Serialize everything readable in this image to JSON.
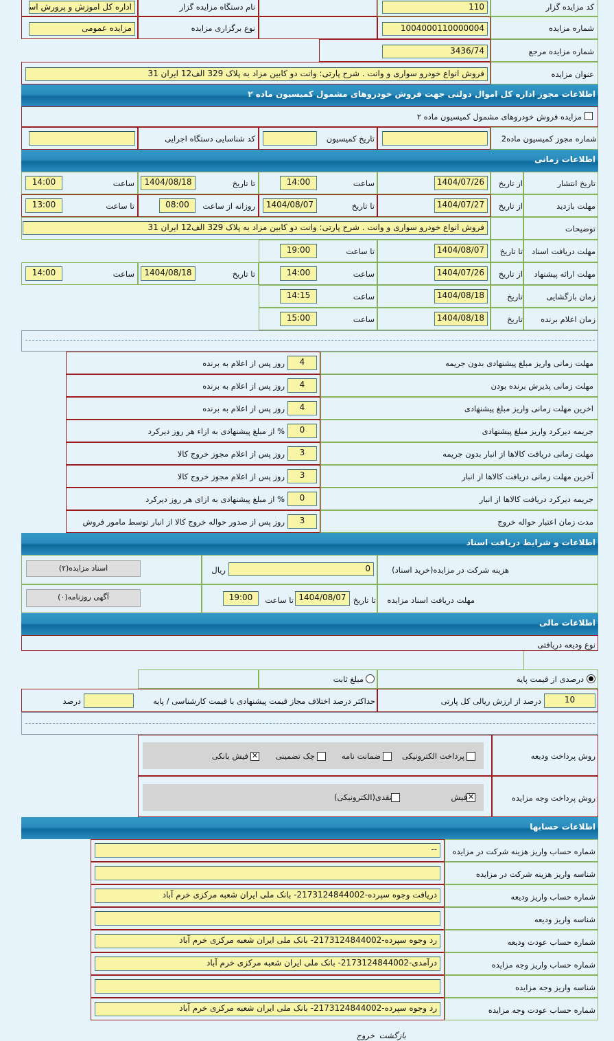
{
  "general": {
    "organizer_code_label": "کد مزایده گزار",
    "organizer_code": "110",
    "organizer_name_label": "نام دستگاه مزایده گزار",
    "organizer_name": "اداره کل اموزش و پرورش استا",
    "auction_number_label": "شماره مزایده",
    "auction_number": "1004000110000004",
    "auction_type_label": "نوع برگزاری مزایده",
    "auction_type": "مزایده عمومی",
    "ref_number_label": "شماره مزایده مرجع",
    "ref_number": "3436/74",
    "title_label": "عنوان مزایده",
    "title": "فروش انواع خودرو سواری و وانت . شرح پارتی: وانت دو کابین مزاد به پلاک 329 الف12 ایران 31"
  },
  "commission": {
    "header": "اطلاعات مجوز اداره کل اموال دولتی جهت فروش خودروهای مشمول کمیسیون ماده ۲",
    "checkbox_label": "مزایده فروش خودروهای مشمول کمیسیون ماده ۲",
    "checkbox_checked": false,
    "permit_label": "شماره مجوز کمیسیون ماده2",
    "permit_value": "",
    "date_label": "تاریخ کمیسیون",
    "date_value": "",
    "agency_code_label": "کد شناسایی دستگاه اجرایی",
    "agency_code_value": ""
  },
  "timing": {
    "header": "اطلاعات زمانی",
    "publish": {
      "label": "تاریخ انتشار",
      "from_label": "از تاریخ",
      "from": "1404/07/26",
      "time_label": "ساعت",
      "time": "14:00",
      "to_label": "تا تاریخ",
      "to": "1404/08/18",
      "to_time_label": "ساعت",
      "to_time": "14:00"
    },
    "visit": {
      "label": "مهلت بازدید",
      "from_label": "از تاریخ",
      "from": "1404/07/27",
      "to_label": "تا تاریخ",
      "to": "1404/08/07",
      "daily_from_label": "روزانه از ساعت",
      "daily_from": "08:00",
      "daily_to_label": "تا ساعت",
      "daily_to": "13:00"
    },
    "description": {
      "label": "توضیحات",
      "value": "فروش انواع خودرو سواری و وانت . شرح پارتی: وانت دو کابین مزاد به پلاک 329 الف12 ایران 31"
    },
    "docs": {
      "label": "مهلت دریافت اسناد",
      "to_label": "تا تاریخ",
      "to": "1404/08/07",
      "time_label": "تا ساعت",
      "time": "19:00"
    },
    "offer": {
      "label": "مهلت ارائه پیشنهاد",
      "from_label": "از تاریخ",
      "from": "1404/07/26",
      "time_label": "ساعت",
      "time": "14:00",
      "to_label": "تا تاریخ",
      "to": "1404/08/18",
      "to_time_label": "ساعت",
      "to_time": "14:00"
    },
    "opening": {
      "label": "زمان بازگشایی",
      "date_label": "تاریخ",
      "date": "1404/08/18",
      "time_label": "ساعت",
      "time": "14:15"
    },
    "winner": {
      "label": "زمان اعلام برنده",
      "date_label": "تاریخ",
      "date": "1404/08/18",
      "time_label": "ساعت",
      "time": "15:00"
    }
  },
  "deadlines": [
    {
      "label": "مهلت زمانی واریز مبلغ پیشنهادی بدون جریمه",
      "value": "4",
      "suffix": "روز پس از اعلام به برنده"
    },
    {
      "label": "مهلت زمانی پذیرش برنده بودن",
      "value": "4",
      "suffix": "روز پس از اعلام به برنده"
    },
    {
      "label": "اخرین مهلت زمانی واریز مبلغ پیشنهادی",
      "value": "4",
      "suffix": "روز پس از اعلام به برنده"
    },
    {
      "label": "جریمه دیرکرد واریز مبلغ پیشنهادی",
      "value": "0",
      "suffix": "% از مبلغ پیشنهادی به ازاء هر روز دیرکرد"
    },
    {
      "label": "مهلت زمانی دریافت کالاها از انبار بدون جریمه",
      "value": "3",
      "suffix": "روز پس از اعلام مجوز خروج کالا"
    },
    {
      "label": "آخرین مهلت زمانی دریافت کالاها از انبار",
      "value": "3",
      "suffix": "روز پس از اعلام مجوز خروج کالا"
    },
    {
      "label": "جریمه دیرکرد دریافت کالاها از انبار",
      "value": "0",
      "suffix": "% از مبلغ پیشنهادی به ازای هر روز دیرکرد"
    },
    {
      "label": "مدت زمان اعتبار حواله خروج",
      "value": "3",
      "suffix": "روز پس از صدور حواله خروج کالا از انبار توسط مامور فروش"
    }
  ],
  "documents": {
    "header": "اطلاعات و شرایط دریافت اسناد",
    "fee_label": "هزینه شرکت در مزایده(خرید اسناد)",
    "fee": "0",
    "fee_unit": "ریال",
    "docs_button": "اسناد مزایده(۲)",
    "deadline_label": "مهلت دریافت اسناد مزایده",
    "to_date_label": "تا تاریخ",
    "to_date": "1404/08/07",
    "to_time_label": "تا ساعت",
    "to_time": "19:00",
    "ad_button": "آگهی روزنامه(۰)"
  },
  "finance": {
    "header": "اطلاعات مالی",
    "deposit_type_label": "نوع ودیعه دریافتی",
    "radio_percent": "درصدی از قیمت پایه",
    "radio_fixed": "مبلغ ثابت",
    "selected": "percent",
    "percent_value": "10",
    "percent_suffix": "درصد از ارزش ریالی کل پارتی",
    "max_diff_label": "حداکثر درصد اختلاف مجاز قیمت پیشنهادی با قیمت کارشناسی / پایه",
    "max_diff_value": "",
    "max_diff_unit": "درصد",
    "deposit_method_label": "روش پرداخت ودیعه",
    "deposit_methods": [
      {
        "label": "پرداخت الکترونیکی",
        "checked": false
      },
      {
        "label": "ضمانت نامه",
        "checked": false
      },
      {
        "label": "چک تضمینی",
        "checked": false
      },
      {
        "label": "فیش بانکی",
        "checked": true
      }
    ],
    "payment_method_label": "روش پرداخت وجه مزایده",
    "payment_methods": [
      {
        "label": "فیش",
        "checked": true
      },
      {
        "label": "نقدی(الکترونیکی)",
        "checked": false
      }
    ]
  },
  "accounts": {
    "header": "اطلاعات حسابها",
    "rows": [
      {
        "label": "شماره حساب واریز هزینه شرکت در مزایده",
        "value": "--"
      },
      {
        "label": "شناسه واریز هزینه شرکت در مزایده",
        "value": ""
      },
      {
        "label": "شماره حساب واریز ودیعه",
        "value": "دریافت وجوه سپرده-2173124844002- بانک ملی ایران شعبه مرکزی خرم آباد"
      },
      {
        "label": "شناسه واریز ودیعه",
        "value": ""
      },
      {
        "label": "شماره حساب عودت ودیعه",
        "value": "رد وجوه سپرده-2173124844002- بانک ملی ایران شعبه مرکزی خرم آباد"
      },
      {
        "label": "شماره حساب واریز وجه مزایده",
        "value": "درآمدی-2173124844002- بانک ملی ایران شعبه مرکزی خرم آباد"
      },
      {
        "label": "شناسه واریز وجه مزایده",
        "value": ""
      },
      {
        "label": "شماره حساب عودت وجه مزایده",
        "value": "رد وجوه سپرده-2173124844002- بانک ملی ایران شعبه مرکزی خرم آباد"
      }
    ]
  },
  "footer": {
    "back_label": "بازگشت",
    "exit_label": "خروج"
  }
}
